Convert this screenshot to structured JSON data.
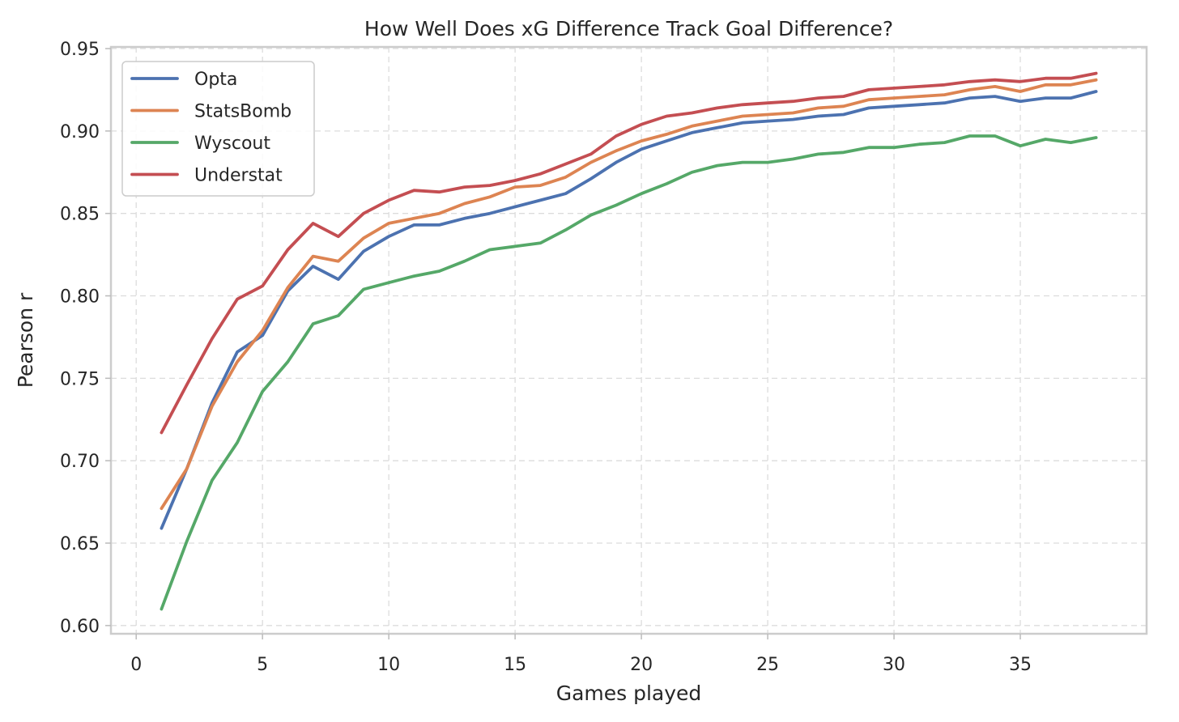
{
  "chart_data": {
    "type": "line",
    "title": "How Well Does xG Difference Track Goal Difference?",
    "xlabel": "Games played",
    "ylabel": "Pearson r",
    "xlim": [
      -1,
      40
    ],
    "ylim": [
      0.595,
      0.951
    ],
    "xticks": [
      0,
      5,
      10,
      15,
      20,
      25,
      30,
      35
    ],
    "xtick_labels": [
      "0",
      "5",
      "10",
      "15",
      "20",
      "25",
      "30",
      "35"
    ],
    "yticks": [
      0.6,
      0.65,
      0.7,
      0.75,
      0.8,
      0.85,
      0.9,
      0.95
    ],
    "ytick_labels": [
      "0.60",
      "0.65",
      "0.70",
      "0.75",
      "0.80",
      "0.85",
      "0.90",
      "0.95"
    ],
    "grid": true,
    "legend_position": "top-left",
    "x": [
      1,
      2,
      3,
      4,
      5,
      6,
      7,
      8,
      9,
      10,
      11,
      12,
      13,
      14,
      15,
      16,
      17,
      18,
      19,
      20,
      21,
      22,
      23,
      24,
      25,
      26,
      27,
      28,
      29,
      30,
      31,
      32,
      33,
      34,
      35,
      36,
      37,
      38
    ],
    "series": [
      {
        "name": "Opta",
        "color": "#4c72b0",
        "values": [
          0.659,
          0.695,
          0.735,
          0.766,
          0.776,
          0.803,
          0.818,
          0.81,
          0.827,
          0.836,
          0.843,
          0.843,
          0.847,
          0.85,
          0.854,
          0.858,
          0.862,
          0.871,
          0.881,
          0.889,
          0.894,
          0.899,
          0.902,
          0.905,
          0.906,
          0.907,
          0.909,
          0.91,
          0.914,
          0.915,
          0.916,
          0.917,
          0.92,
          0.921,
          0.918,
          0.92,
          0.92,
          0.924
        ]
      },
      {
        "name": "StatsBomb",
        "color": "#dd8452",
        "values": [
          0.671,
          0.695,
          0.733,
          0.76,
          0.779,
          0.805,
          0.824,
          0.821,
          0.835,
          0.844,
          0.847,
          0.85,
          0.856,
          0.86,
          0.866,
          0.867,
          0.872,
          0.881,
          0.888,
          0.894,
          0.898,
          0.903,
          0.906,
          0.909,
          0.91,
          0.911,
          0.914,
          0.915,
          0.919,
          0.92,
          0.921,
          0.922,
          0.925,
          0.927,
          0.924,
          0.928,
          0.928,
          0.931
        ]
      },
      {
        "name": "Wyscout",
        "color": "#55a868",
        "values": [
          0.61,
          0.651,
          0.688,
          0.711,
          0.742,
          0.76,
          0.783,
          0.788,
          0.804,
          0.808,
          0.812,
          0.815,
          0.821,
          0.828,
          0.83,
          0.832,
          0.84,
          0.849,
          0.855,
          0.862,
          0.868,
          0.875,
          0.879,
          0.881,
          0.881,
          0.883,
          0.886,
          0.887,
          0.89,
          0.89,
          0.892,
          0.893,
          0.897,
          0.897,
          0.891,
          0.895,
          0.893,
          0.896
        ]
      },
      {
        "name": "Understat",
        "color": "#c44e52",
        "values": [
          0.717,
          0.746,
          0.774,
          0.798,
          0.806,
          0.828,
          0.844,
          0.836,
          0.85,
          0.858,
          0.864,
          0.863,
          0.866,
          0.867,
          0.87,
          0.874,
          0.88,
          0.886,
          0.897,
          0.904,
          0.909,
          0.911,
          0.914,
          0.916,
          0.917,
          0.918,
          0.92,
          0.921,
          0.925,
          0.926,
          0.927,
          0.928,
          0.93,
          0.931,
          0.93,
          0.932,
          0.932,
          0.935
        ]
      }
    ]
  }
}
